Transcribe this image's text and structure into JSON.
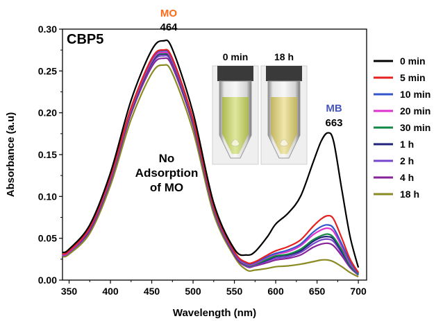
{
  "chart_data": {
    "type": "line",
    "title": "CBP5",
    "xlabel": "Wavelength (nm)",
    "ylabel": "Absorbance (a.u)",
    "xlim": [
      342,
      710
    ],
    "ylim": [
      0,
      0.3
    ],
    "xticks": [
      350,
      400,
      450,
      500,
      550,
      600,
      650,
      700
    ],
    "yticks": [
      0.0,
      0.05,
      0.1,
      0.15,
      0.2,
      0.25,
      0.3
    ],
    "ytick_labels": [
      "0.00",
      "0.05",
      "0.10",
      "0.15",
      "0.20",
      "0.25",
      "0.30"
    ],
    "grid": false,
    "legend_position": "right",
    "x": [
      342,
      350,
      375,
      400,
      425,
      450,
      464,
      475,
      500,
      525,
      550,
      565,
      575,
      590,
      600,
      615,
      630,
      645,
      655,
      663,
      670,
      680,
      690,
      700
    ],
    "series": [
      {
        "name": "0 min",
        "color": "#000000",
        "values": [
          0.033,
          0.037,
          0.066,
          0.128,
          0.215,
          0.275,
          0.286,
          0.276,
          0.2,
          0.092,
          0.037,
          0.03,
          0.034,
          0.052,
          0.067,
          0.08,
          0.1,
          0.14,
          0.166,
          0.176,
          0.166,
          0.108,
          0.052,
          0.015
        ]
      },
      {
        "name": "5 min",
        "color": "#e62020",
        "values": [
          0.031,
          0.035,
          0.063,
          0.124,
          0.206,
          0.265,
          0.275,
          0.265,
          0.192,
          0.088,
          0.034,
          0.021,
          0.022,
          0.03,
          0.035,
          0.04,
          0.048,
          0.064,
          0.073,
          0.077,
          0.073,
          0.05,
          0.025,
          0.009
        ]
      },
      {
        "name": "10 min",
        "color": "#3355cc",
        "values": [
          0.031,
          0.035,
          0.063,
          0.124,
          0.206,
          0.264,
          0.274,
          0.264,
          0.191,
          0.087,
          0.033,
          0.02,
          0.021,
          0.028,
          0.032,
          0.036,
          0.043,
          0.057,
          0.064,
          0.066,
          0.062,
          0.043,
          0.022,
          0.008
        ]
      },
      {
        "name": "20 min",
        "color": "#dd33cc",
        "values": [
          0.03,
          0.034,
          0.062,
          0.122,
          0.204,
          0.262,
          0.272,
          0.262,
          0.19,
          0.086,
          0.032,
          0.019,
          0.02,
          0.027,
          0.031,
          0.034,
          0.041,
          0.054,
          0.06,
          0.062,
          0.058,
          0.04,
          0.02,
          0.008
        ]
      },
      {
        "name": "30 min",
        "color": "#118844",
        "values": [
          0.03,
          0.034,
          0.062,
          0.121,
          0.203,
          0.261,
          0.271,
          0.261,
          0.189,
          0.085,
          0.032,
          0.018,
          0.019,
          0.025,
          0.029,
          0.031,
          0.037,
          0.048,
          0.053,
          0.055,
          0.051,
          0.036,
          0.018,
          0.007
        ]
      },
      {
        "name": "1 h",
        "color": "#22227a",
        "values": [
          0.03,
          0.034,
          0.061,
          0.121,
          0.202,
          0.26,
          0.27,
          0.26,
          0.188,
          0.085,
          0.031,
          0.018,
          0.019,
          0.024,
          0.028,
          0.03,
          0.035,
          0.046,
          0.051,
          0.052,
          0.049,
          0.034,
          0.017,
          0.007
        ]
      },
      {
        "name": "2 h",
        "color": "#7744cc",
        "values": [
          0.029,
          0.033,
          0.06,
          0.12,
          0.201,
          0.258,
          0.268,
          0.258,
          0.187,
          0.084,
          0.031,
          0.017,
          0.018,
          0.023,
          0.026,
          0.028,
          0.033,
          0.043,
          0.048,
          0.049,
          0.046,
          0.032,
          0.016,
          0.006
        ]
      },
      {
        "name": "4 h",
        "color": "#882299",
        "values": [
          0.029,
          0.033,
          0.059,
          0.118,
          0.199,
          0.255,
          0.265,
          0.255,
          0.185,
          0.083,
          0.03,
          0.016,
          0.017,
          0.021,
          0.024,
          0.026,
          0.03,
          0.039,
          0.043,
          0.044,
          0.041,
          0.029,
          0.015,
          0.006
        ]
      },
      {
        "name": "18 h",
        "color": "#8a8a22",
        "values": [
          0.028,
          0.031,
          0.056,
          0.113,
          0.192,
          0.247,
          0.257,
          0.247,
          0.178,
          0.079,
          0.028,
          0.012,
          0.012,
          0.014,
          0.016,
          0.017,
          0.019,
          0.022,
          0.024,
          0.024,
          0.022,
          0.016,
          0.009,
          0.004
        ]
      }
    ],
    "annotations": [
      {
        "text": "MO",
        "color": "#ff6a1a"
      },
      {
        "text": "464",
        "color": "#000000"
      },
      {
        "text": "MB",
        "color": "#4455bb"
      },
      {
        "text": "663",
        "color": "#000000"
      },
      {
        "text": "No Adsorption of MO",
        "color": "#000000"
      }
    ],
    "photo_labels": [
      "0 min",
      "18 h"
    ]
  }
}
